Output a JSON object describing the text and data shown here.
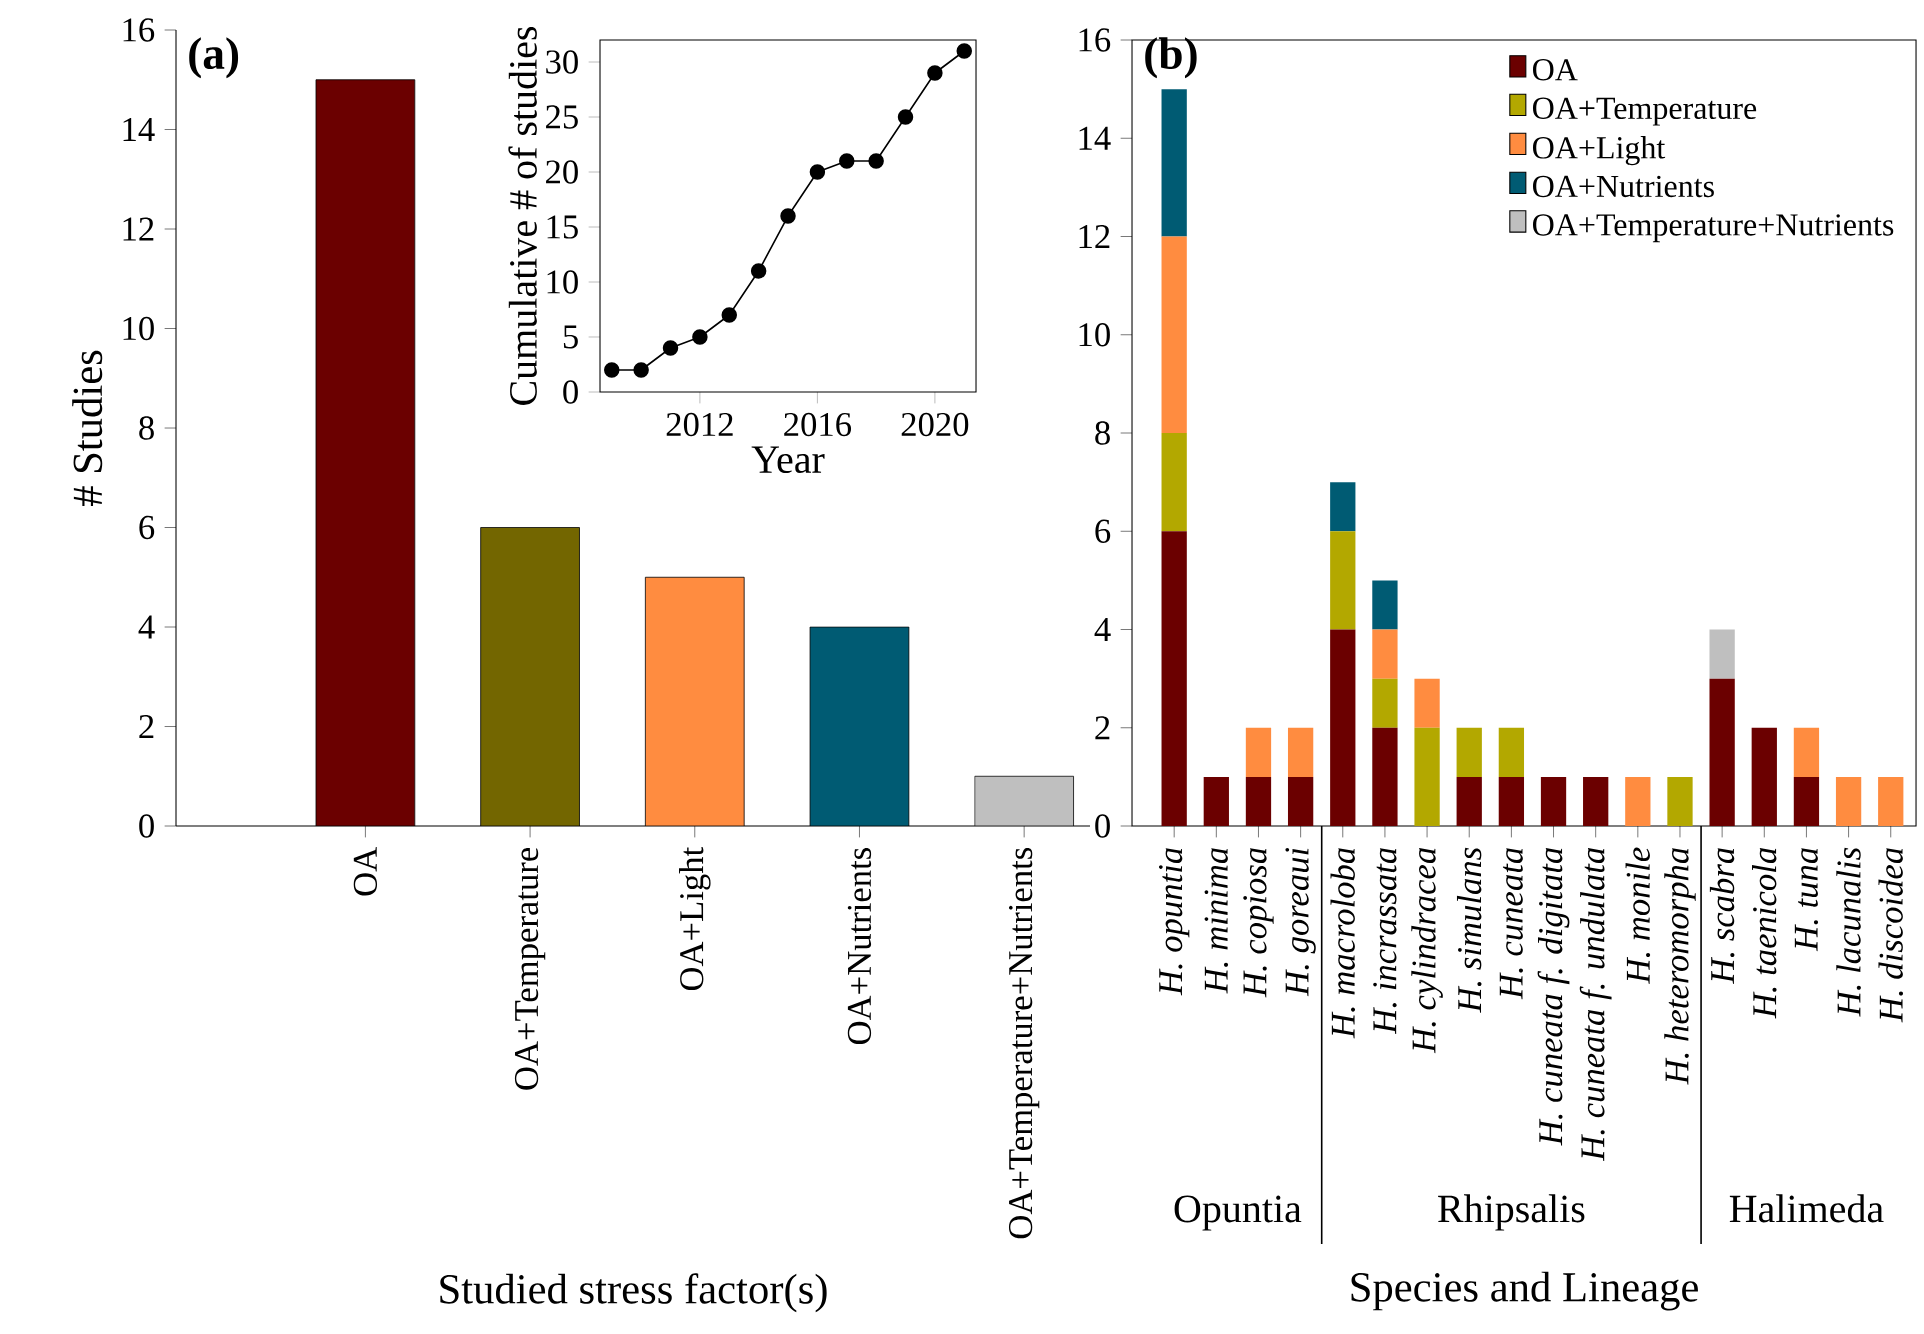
{
  "chart_data": [
    {
      "type": "bar",
      "xlabel": "Studied stress factor(s)",
      "ylabel": "# Studies",
      "categories": [
        "OA",
        "OA+Temperature",
        "OA+Light",
        "OA+Nutrients",
        "OA+Temperature+Nutrients"
      ],
      "values": [
        15,
        6,
        5,
        4,
        1
      ],
      "colors": [
        "#6b0000",
        "#736600",
        "#ff8c40",
        "#005b73",
        "#bfbfbf"
      ],
      "ylim": [
        0,
        16
      ],
      "yticks": [
        0,
        2,
        4,
        6,
        8,
        10,
        12,
        14,
        16
      ],
      "annotations": [
        "(a)"
      ]
    },
    {
      "type": "line",
      "xlabel": "Year",
      "ylabel": "Cumulative # of studies",
      "x": [
        2009,
        2010,
        2011,
        2012,
        2013,
        2014,
        2015,
        2016,
        2017,
        2018,
        2019,
        2020,
        2021
      ],
      "values": [
        2,
        2,
        4,
        5,
        7,
        11,
        16,
        20,
        21,
        21,
        25,
        29,
        31
      ],
      "color": "#000000",
      "marker": "circle",
      "xlim": [
        2008.6,
        2021.4
      ],
      "xticks": [
        2012,
        2016,
        2020
      ],
      "ylim": [
        0,
        32
      ],
      "yticks": [
        0,
        5,
        10,
        15,
        20,
        25,
        30
      ]
    },
    {
      "type": "bar",
      "stacked": true,
      "xlabel": "Species and Lineage",
      "legend": "top right",
      "categories": [
        "H. opuntia",
        "H. minima",
        "H. copiosa",
        "H. goreaui",
        "H. macroloba",
        "H. incrassata",
        "H. cylindracea",
        "H. simulans",
        "H. cuneata",
        "H. cuneata f. digitata",
        "H. cuneata f. undulata",
        "H. monile",
        "H. heteromorpha",
        "H. scabra",
        "H. taenicola",
        "H. tuna",
        "H. lacunalis",
        "H. discoidea"
      ],
      "series": [
        {
          "name": "OA",
          "color": "#6b0000",
          "values": [
            6,
            1,
            1,
            1,
            4,
            2,
            0,
            1,
            1,
            1,
            1,
            0,
            0,
            3,
            2,
            1,
            0,
            0
          ]
        },
        {
          "name": "OA+Temperature",
          "color": "#b3a800",
          "values": [
            2,
            0,
            0,
            0,
            2,
            1,
            2,
            1,
            1,
            0,
            0,
            0,
            1,
            0,
            0,
            0,
            0,
            0
          ]
        },
        {
          "name": "OA+Light",
          "color": "#ff8c40",
          "values": [
            4,
            0,
            1,
            1,
            0,
            1,
            1,
            0,
            0,
            0,
            0,
            1,
            0,
            0,
            0,
            1,
            1,
            1
          ]
        },
        {
          "name": "OA+Nutrients",
          "color": "#005b73",
          "values": [
            3,
            0,
            0,
            0,
            1,
            1,
            0,
            0,
            0,
            0,
            0,
            0,
            0,
            0,
            0,
            0,
            0,
            0
          ]
        },
        {
          "name": "OA+Temperature+Nutrients",
          "color": "#bfbfbf",
          "values": [
            0,
            0,
            0,
            0,
            0,
            0,
            0,
            0,
            0,
            0,
            0,
            0,
            0,
            1,
            0,
            0,
            0,
            0
          ]
        }
      ],
      "ylim": [
        0,
        16
      ],
      "yticks": [
        0,
        2,
        4,
        6,
        8,
        10,
        12,
        14,
        16
      ],
      "annotations": [
        "(b)",
        "Opuntia",
        "Rhipsalis",
        "Halimeda"
      ]
    }
  ]
}
